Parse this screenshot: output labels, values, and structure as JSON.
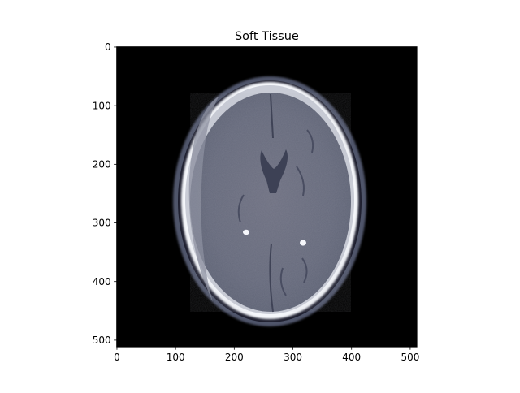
{
  "title": "Soft Tissue",
  "image": {
    "colormap": "bone",
    "x_axis": {
      "lim": [
        0,
        511
      ],
      "ticks": [
        0,
        100,
        200,
        300,
        400,
        500
      ],
      "tick_labels": [
        "0",
        "100",
        "200",
        "300",
        "400",
        "500"
      ]
    },
    "y_axis": {
      "lim": [
        511,
        0
      ],
      "ticks": [
        0,
        100,
        200,
        300,
        400,
        500
      ],
      "tick_labels": [
        "0",
        "100",
        "200",
        "300",
        "400",
        "500"
      ]
    }
  }
}
